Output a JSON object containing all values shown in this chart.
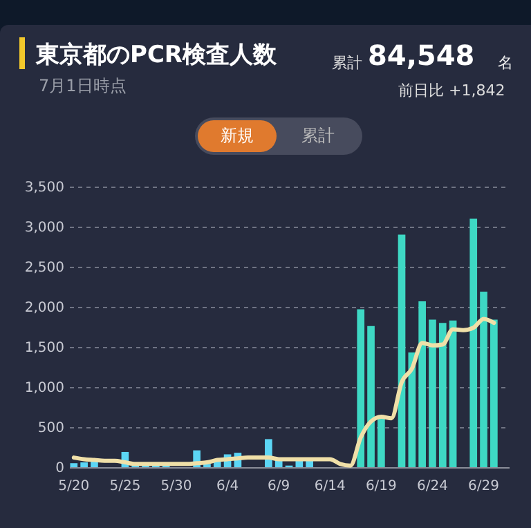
{
  "chart_data": {
    "type": "bar",
    "title": "東京都のPCR検査人数",
    "subtitle": "7月1日時点",
    "annotations": [
      "累計",
      "84,548",
      "名",
      "前日比 +1,842",
      "新規",
      "累計"
    ],
    "categories": [
      "5/20",
      null,
      null,
      null,
      null,
      "5/25",
      null,
      null,
      null,
      null,
      "5/30",
      null,
      null,
      null,
      null,
      "6/4",
      null,
      null,
      null,
      null,
      "6/9",
      null,
      null,
      null,
      null,
      "6/14",
      null,
      null,
      null,
      null,
      "6/19",
      null,
      null,
      null,
      null,
      "6/24",
      null,
      null,
      null,
      null,
      "6/29",
      null,
      null
    ],
    "series": [
      {
        "colors": [
          "#5cd6f5",
          "#5cd6f5",
          "#5cd6f5",
          "#5cd6f5",
          "#5cd6f5",
          "#5cd6f5",
          "#5cd6f5",
          "#5cd6f5",
          "#5cd6f5",
          "#5cd6f5",
          "#5cd6f5",
          "#5cd6f5",
          "#5cd6f5",
          "#5cd6f5",
          "#5cd6f5",
          "#5cd6f5",
          "#5cd6f5",
          "#5cd6f5",
          "#5cd6f5",
          "#5cd6f5",
          "#5cd6f5",
          "#5cd6f5",
          "#5cd6f5",
          "#5cd6f5",
          "#5cd6f5",
          "#5cd6f5",
          "#5cd6f5",
          "#5cd6f5",
          "#3ed8c4",
          "#3ed8c4",
          "#3ed8c4",
          "#3ed8c4",
          "#3ed8c4",
          "#3ed8c4",
          "#3ed8c4",
          "#3ed8c4",
          "#3ed8c4",
          "#3ed8c4",
          "#3ed8c4",
          "#3ed8c4",
          "#3ed8c4",
          "#3ed8c4",
          "#3ed8c4"
        ],
        "values": [
          50,
          60,
          70,
          0,
          0,
          190,
          20,
          20,
          20,
          20,
          0,
          0,
          210,
          40,
          90,
          160,
          180,
          0,
          0,
          350,
          90,
          20,
          90,
          90,
          0,
          0,
          0,
          0,
          1970,
          1760,
          640,
          0,
          2900,
          1430,
          2070,
          1840,
          1800,
          1830,
          0,
          3100,
          2190,
          1840,
          0
        ]
      },
      {
        "type": "line",
        "color": "#f0e0a8",
        "values": [
          120,
          100,
          90,
          80,
          80,
          60,
          40,
          40,
          40,
          40,
          40,
          40,
          50,
          60,
          90,
          100,
          110,
          120,
          120,
          120,
          100,
          100,
          100,
          100,
          100,
          100,
          40,
          20,
          370,
          570,
          630,
          610,
          1060,
          1230,
          1550,
          1520,
          1530,
          1720,
          1710,
          1740,
          1850,
          1800,
          null
        ]
      }
    ],
    "ylim": [
      0,
      3500
    ],
    "yticks": [
      0,
      500,
      {
        "value": 1000,
        "label": "1,000"
      },
      {
        "value": 1500,
        "label": "1,500"
      },
      {
        "value": 2000,
        "label": "2,000"
      },
      {
        "value": 2500,
        "label": "2,500"
      },
      {
        "value": 3000,
        "label": "3,000"
      },
      {
        "value": 3500,
        "label": "3,500"
      }
    ],
    "grid": "y"
  }
}
